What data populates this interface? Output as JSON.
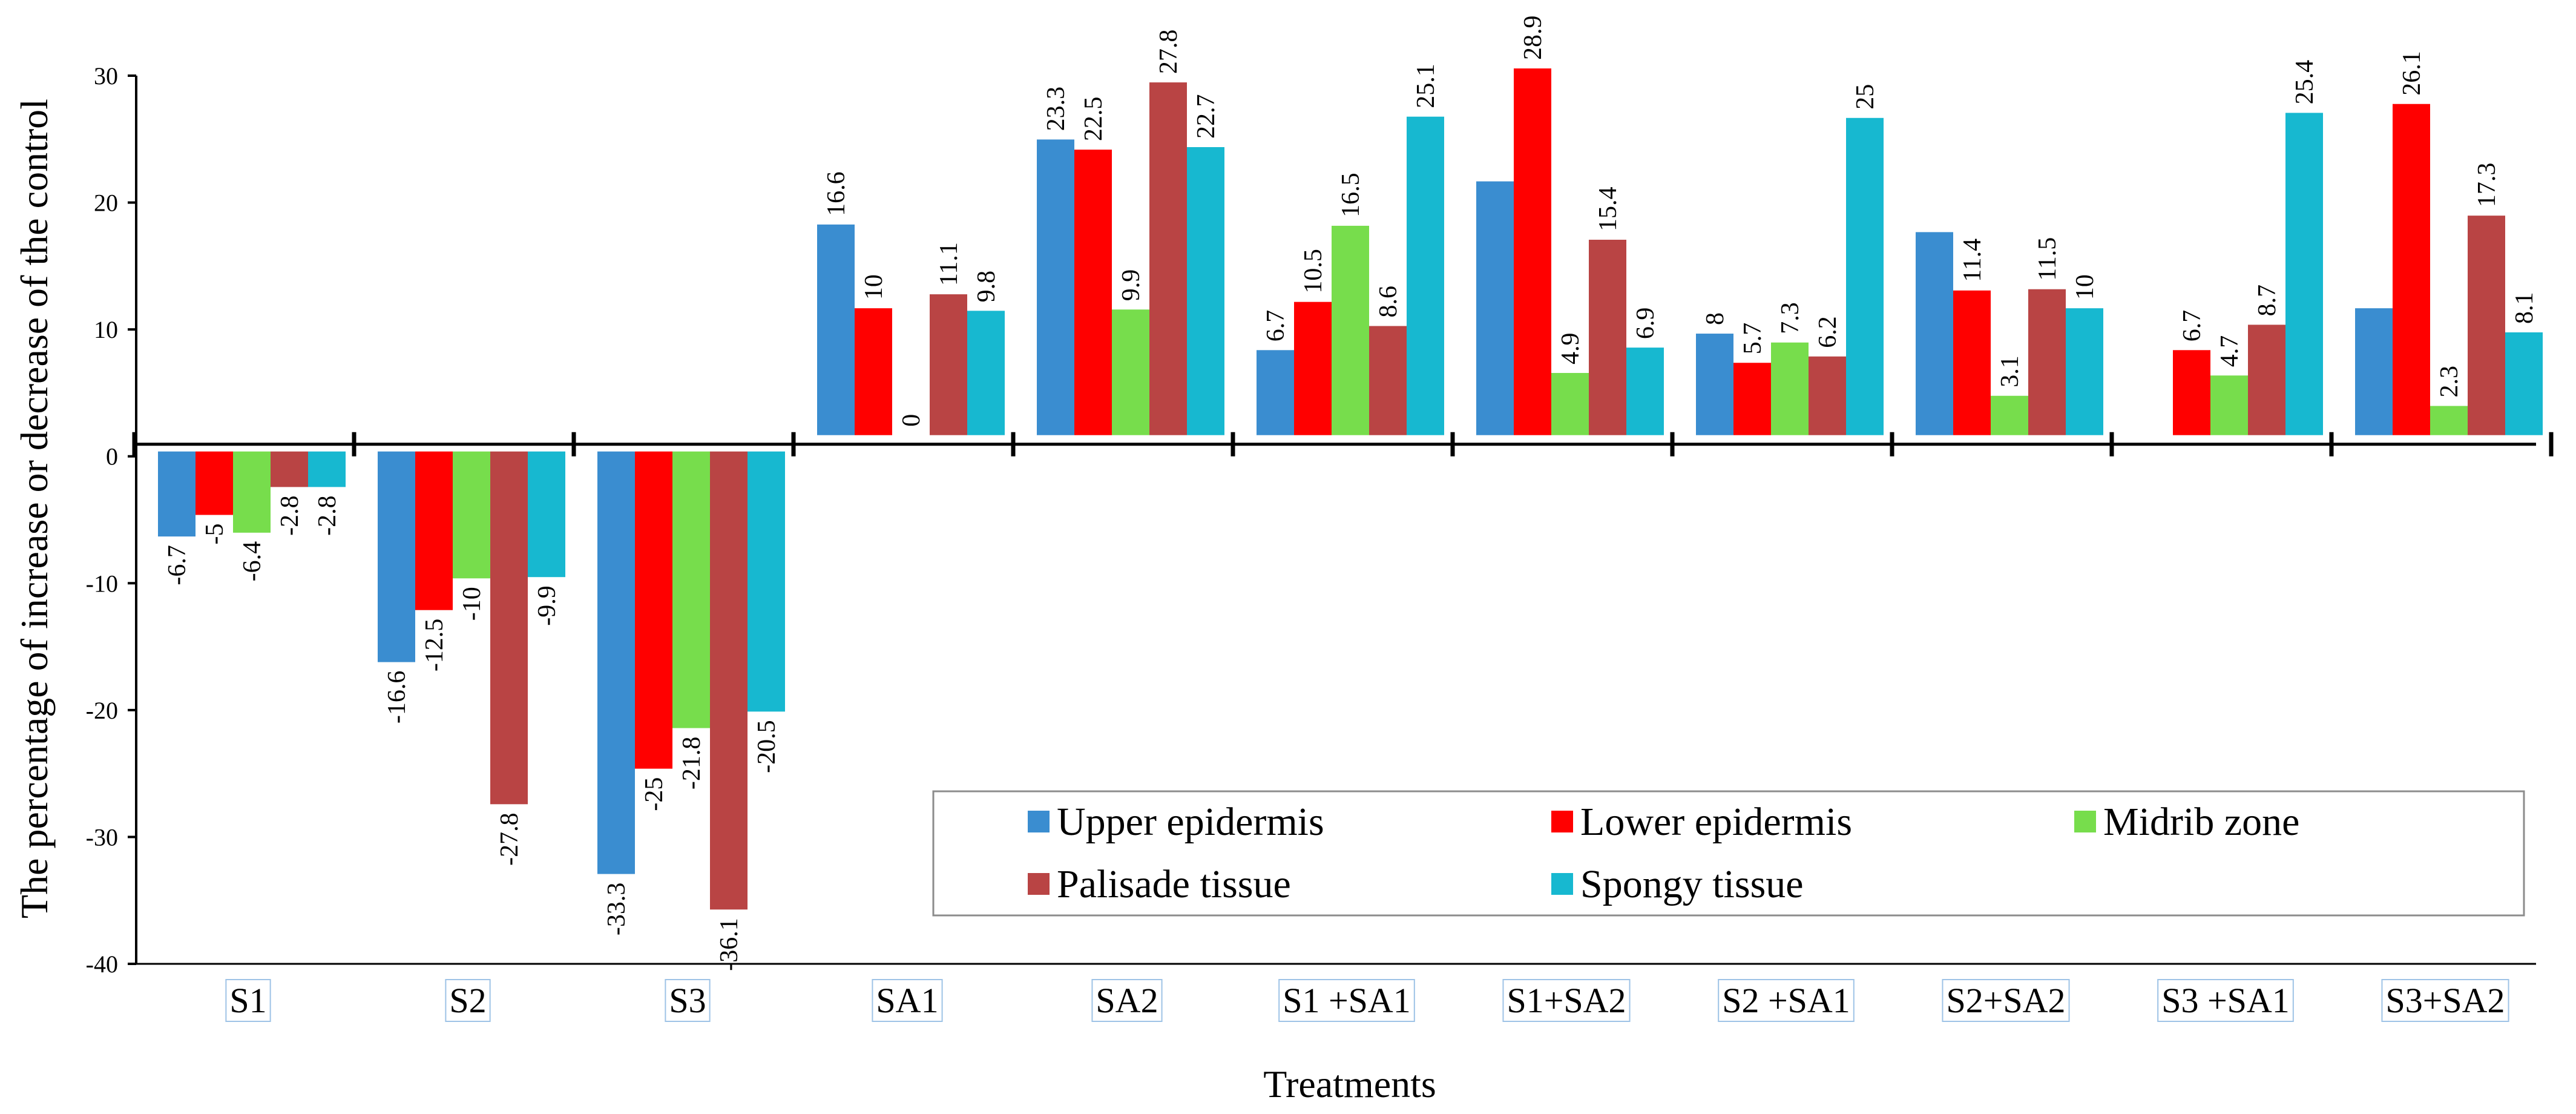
{
  "chart_data": {
    "type": "bar",
    "title": "",
    "xlabel": "Treatments",
    "ylabel": "The percentage of increase or decrease of the control",
    "ylim": [
      -40,
      30
    ],
    "yticks": [
      30,
      20,
      10,
      0,
      -10,
      -20,
      -30,
      -40
    ],
    "ytick_labels": [
      "30",
      "20",
      "10",
      "0",
      "-10",
      "-20",
      "-30",
      "-40"
    ],
    "categories": [
      "S1",
      "S2",
      "S3",
      "SA1",
      "SA2",
      "S1 +SA1",
      "S1+SA2",
      "S2 +SA1",
      "S2+SA2",
      "S3 +SA1",
      "S3+SA2"
    ],
    "legend_position": "lower-right",
    "series": [
      {
        "name": "Upper epidermis",
        "color": "#3A8DD0",
        "values": [
          -6.7,
          -16.6,
          -33.3,
          16.6,
          23.3,
          6.7,
          20,
          8,
          16,
          null,
          10
        ],
        "labels": [
          "-6.7",
          "-16.6",
          "-33.3",
          "16.6",
          "23.3",
          "6.7",
          "",
          "8",
          "",
          "",
          ""
        ]
      },
      {
        "name": "Lower epidermis",
        "color": "#FF0000",
        "values": [
          -5,
          -12.5,
          -25,
          10,
          22.5,
          10.5,
          28.9,
          5.7,
          11.4,
          6.7,
          26.1
        ],
        "labels": [
          "-5",
          "-12.5",
          "-25",
          "10",
          "22.5",
          "10.5",
          "28.9",
          "5.7",
          "11.4",
          "6.7",
          "26.1"
        ]
      },
      {
        "name": "Midrib zone",
        "color": "#77DD4C",
        "values": [
          -6.4,
          -10,
          -21.8,
          0,
          9.9,
          16.5,
          4.9,
          7.3,
          3.1,
          4.7,
          2.3
        ],
        "labels": [
          "-6.4",
          "-10",
          "-21.8",
          "0",
          "9.9",
          "16.5",
          "4.9",
          "7.3",
          "3.1",
          "4.7",
          "2.3"
        ]
      },
      {
        "name": "Palisade tissue",
        "color": "#B94444",
        "values": [
          -2.8,
          -27.8,
          -36.1,
          11.1,
          27.8,
          8.6,
          15.4,
          6.2,
          11.5,
          8.7,
          17.3
        ],
        "labels": [
          "-2.8",
          "-27.8",
          "-36.1",
          "11.1",
          "27.8",
          "8.6",
          "15.4",
          "6.2",
          "11.5",
          "8.7",
          "17.3"
        ]
      },
      {
        "name": "Spongy tissue",
        "color": "#17B8D0",
        "values": [
          -2.8,
          -9.9,
          -20.5,
          9.8,
          22.7,
          25.1,
          6.9,
          25,
          10,
          25.4,
          8.1
        ],
        "labels": [
          "-2.8",
          "-9.9",
          "-20.5",
          "9.8",
          "22.7",
          "25.1",
          "6.9",
          "25",
          "10",
          "25.4",
          "8.1"
        ]
      }
    ]
  }
}
